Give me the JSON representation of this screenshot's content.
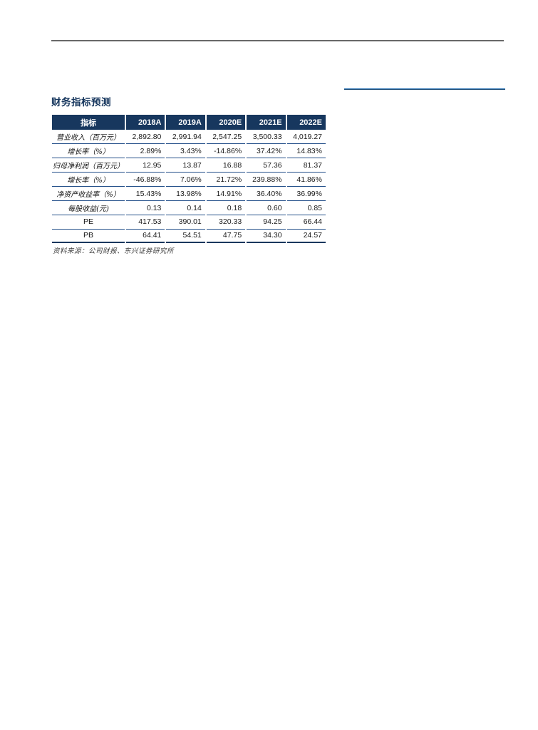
{
  "page": {
    "section_title": "财务指标预测",
    "source_note": "资料来源：公司财报、东兴证券研究所"
  },
  "colors": {
    "header_bg": "#17375E",
    "title_blue": "#17375E",
    "row_border_blue": "#24508A",
    "accent_line_blue": "#2E74B5",
    "top_rule_gray": "#4D4D4D"
  },
  "table": {
    "columns": [
      "指标",
      "2018A",
      "2019A",
      "2020E",
      "2021E",
      "2022E"
    ],
    "rows": [
      {
        "label": "营业收入（百万元）",
        "values": [
          "2,892.80",
          "2,991.94",
          "2,547.25",
          "3,500.33",
          "4,019.27"
        ]
      },
      {
        "label": "增长率（%）",
        "values": [
          "2.89%",
          "3.43%",
          "-14.86%",
          "37.42%",
          "14.83%"
        ]
      },
      {
        "label": "归母净利润（百万元）",
        "values": [
          "12.95",
          "13.87",
          "16.88",
          "57.36",
          "81.37"
        ]
      },
      {
        "label": "增长率（%）",
        "values": [
          "-46.88%",
          "7.06%",
          "21.72%",
          "239.88%",
          "41.86%"
        ]
      },
      {
        "label": "净资产收益率（%）",
        "values": [
          "15.43%",
          "13.98%",
          "14.91%",
          "36.40%",
          "36.99%"
        ]
      },
      {
        "label": "每股收益(元)",
        "values": [
          "0.13",
          "0.14",
          "0.18",
          "0.60",
          "0.85"
        ]
      },
      {
        "label": "PE",
        "values": [
          "417.53",
          "390.01",
          "320.33",
          "94.25",
          "66.44"
        ]
      },
      {
        "label": "PB",
        "values": [
          "64.41",
          "54.51",
          "47.75",
          "34.30",
          "24.57"
        ]
      }
    ]
  }
}
